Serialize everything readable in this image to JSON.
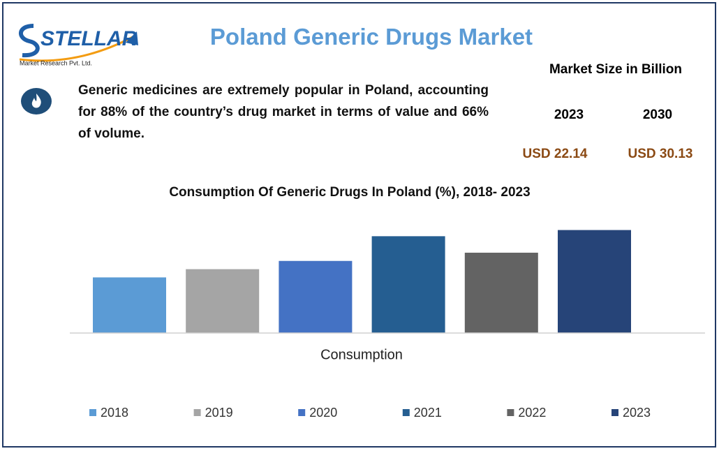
{
  "logo": {
    "name": "STELLAR",
    "tagline": "Market Research Pvt. Ltd."
  },
  "header": {
    "title": "Poland Generic Drugs Market"
  },
  "description": "Generic medicines are extremely popular in Poland, accounting for 88% of the country’s drug market in terms of value and 66% of volume.",
  "market_size": {
    "heading": "Market Size in Billion",
    "years": [
      "2023",
      "2030"
    ],
    "values": [
      "USD 22.14",
      "USD 30.13"
    ]
  },
  "chart_data": {
    "type": "bar",
    "title": "Consumption Of Generic Drugs In Poland (%), 2018- 2023",
    "categories": [
      "Consumption"
    ],
    "series": [
      {
        "name": "2018",
        "color": "#5b9bd5",
        "values": [
          27
        ]
      },
      {
        "name": "2019",
        "color": "#a5a5a5",
        "values": [
          31
        ]
      },
      {
        "name": "2020",
        "color": "#4472c4",
        "values": [
          35
        ]
      },
      {
        "name": "2021",
        "color": "#255e91",
        "values": [
          47
        ]
      },
      {
        "name": "2022",
        "color": "#636363",
        "values": [
          39
        ]
      },
      {
        "name": "2023",
        "color": "#264478",
        "values": [
          50
        ]
      }
    ],
    "ylim": [
      0,
      60
    ],
    "legend": "bottom"
  }
}
